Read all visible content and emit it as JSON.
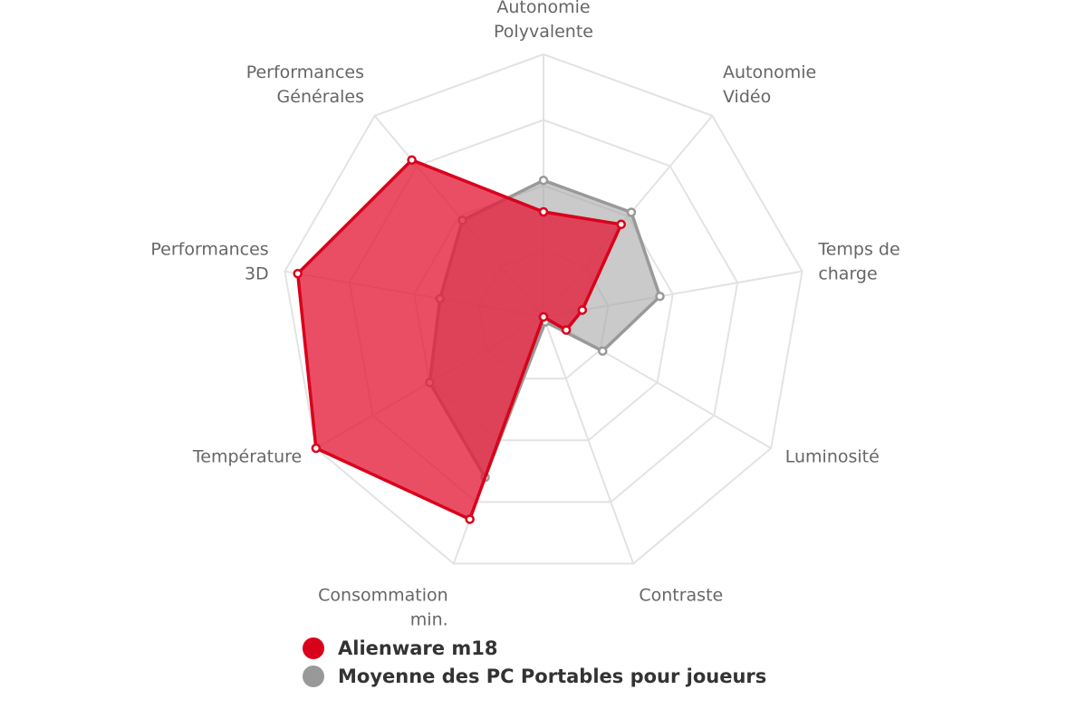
{
  "chart_data": {
    "type": "radar",
    "axes": [
      [
        "Autonomie",
        "Polyvalente"
      ],
      [
        "Autonomie",
        "Vidéo"
      ],
      [
        "Temps de",
        "charge"
      ],
      [
        "Luminosité"
      ],
      [
        "Contraste"
      ],
      [
        "Consommation",
        "min."
      ],
      [
        "Température"
      ],
      [
        "Performances",
        "3D"
      ],
      [
        "Performances",
        "Générales"
      ]
    ],
    "rlim": [
      0,
      100
    ],
    "grid_levels": 4,
    "series": [
      {
        "name": "Alienware m18",
        "color": "#d9001b",
        "values": [
          40,
          46,
          15,
          10,
          0,
          82,
          100,
          95,
          78
        ]
      },
      {
        "name": "Moyenne des PC Portables pour joueurs",
        "color": "#999999",
        "values": [
          52,
          52,
          45,
          26,
          2,
          65,
          50,
          40,
          48
        ]
      }
    ],
    "legend": "bottom"
  }
}
